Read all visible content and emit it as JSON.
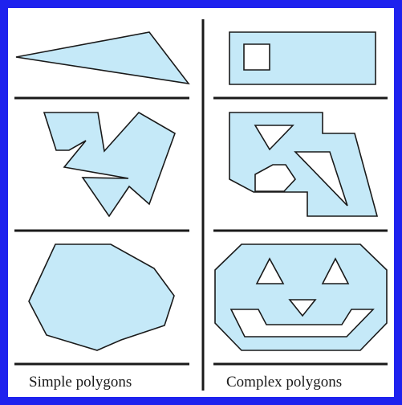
{
  "colors": {
    "border": "#1e22ee",
    "fill": "#c5e9f8",
    "stroke": "#1a1a1a",
    "background": "#ffffff"
  },
  "captions": {
    "simple": "Simple polygons",
    "complex": "Complex polygons"
  }
}
